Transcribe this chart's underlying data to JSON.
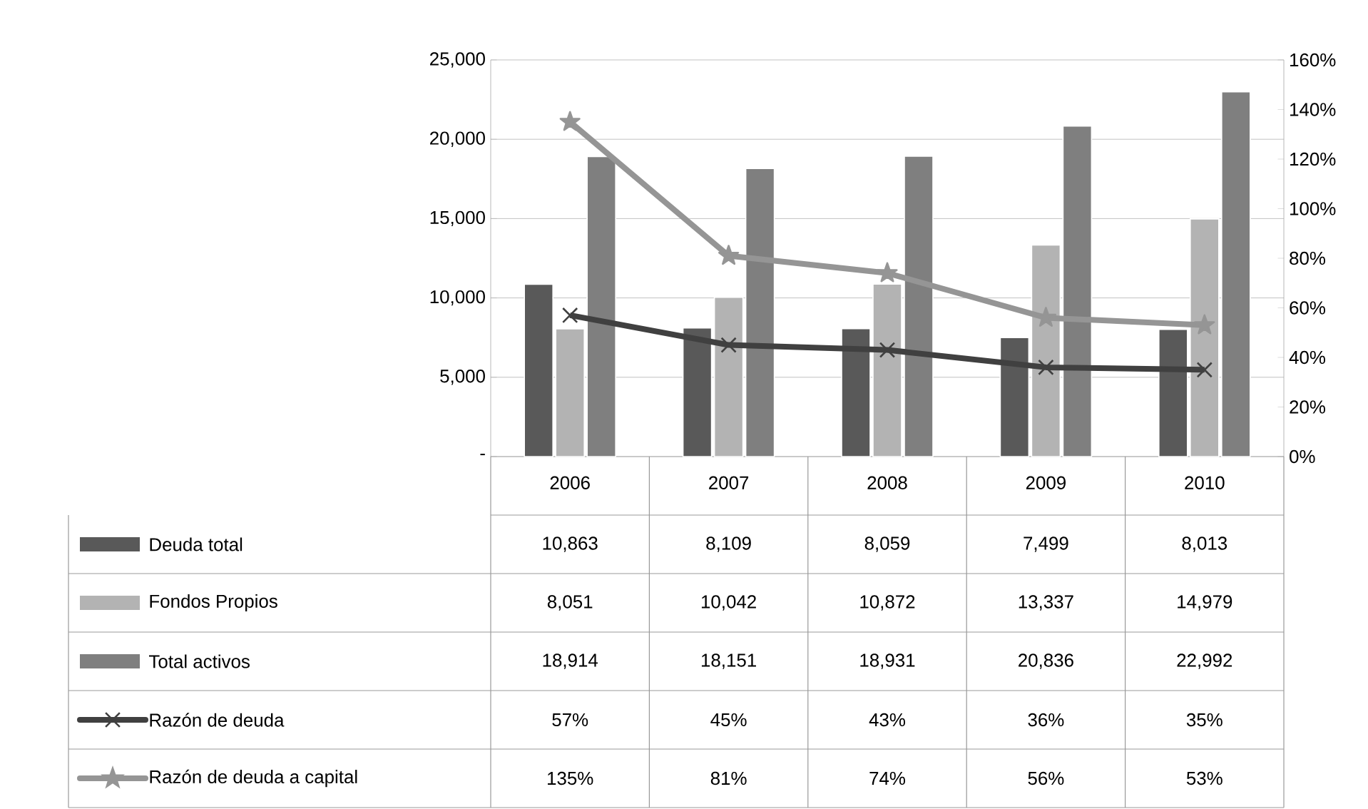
{
  "chart_data": {
    "type": "bar",
    "categories": [
      "2006",
      "2007",
      "2008",
      "2009",
      "2010"
    ],
    "series": [
      {
        "name": "Deuda total",
        "color": "#595959",
        "values": [
          10863,
          8109,
          8059,
          7499,
          8013
        ],
        "value_labels": [
          "10,863",
          "8,109",
          "8,059",
          "7,499",
          "8,013"
        ]
      },
      {
        "name": "Fondos Propios",
        "color": "#b3b3b3",
        "values": [
          8051,
          10042,
          10872,
          13337,
          14979
        ],
        "value_labels": [
          "8,051",
          "10,042",
          "10,872",
          "13,337",
          "14,979"
        ]
      },
      {
        "name": "Total activos",
        "color": "#7f7f7f",
        "values": [
          18914,
          18151,
          18931,
          20836,
          22992
        ],
        "value_labels": [
          "18,914",
          "18,151",
          "18,931",
          "20,836",
          "22,992"
        ]
      },
      {
        "name": "Razón de deuda",
        "type": "line",
        "axis": "y2",
        "color": "#404040",
        "marker": "cross",
        "values": [
          57,
          45,
          43,
          36,
          35
        ],
        "value_labels": [
          "57%",
          "45%",
          "43%",
          "36%",
          "35%"
        ]
      },
      {
        "name": "Razón de deuda a capital",
        "type": "line",
        "axis": "y2",
        "color": "#959595",
        "marker": "star",
        "values": [
          135,
          81,
          74,
          56,
          53
        ],
        "value_labels": [
          "135%",
          "81%",
          "74%",
          "56%",
          "53%"
        ]
      }
    ],
    "ylim": [
      0,
      25000
    ],
    "yticks": [
      {
        "value": 0,
        "label": "-"
      },
      {
        "value": 5000,
        "label": "5,000"
      },
      {
        "value": 10000,
        "label": "10,000"
      },
      {
        "value": 15000,
        "label": "15,000"
      },
      {
        "value": 20000,
        "label": "20,000"
      },
      {
        "value": 25000,
        "label": "25,000"
      }
    ],
    "y2lim": [
      0,
      160
    ],
    "y2ticks": [
      {
        "value": 0,
        "label": "0%"
      },
      {
        "value": 20,
        "label": "20%"
      },
      {
        "value": 40,
        "label": "40%"
      },
      {
        "value": 60,
        "label": "60%"
      },
      {
        "value": 80,
        "label": "80%"
      },
      {
        "value": 100,
        "label": "100%"
      },
      {
        "value": 120,
        "label": "120%"
      },
      {
        "value": 140,
        "label": "140%"
      },
      {
        "value": 160,
        "label": "160%"
      }
    ],
    "grid": "y",
    "legend": "bottom"
  }
}
